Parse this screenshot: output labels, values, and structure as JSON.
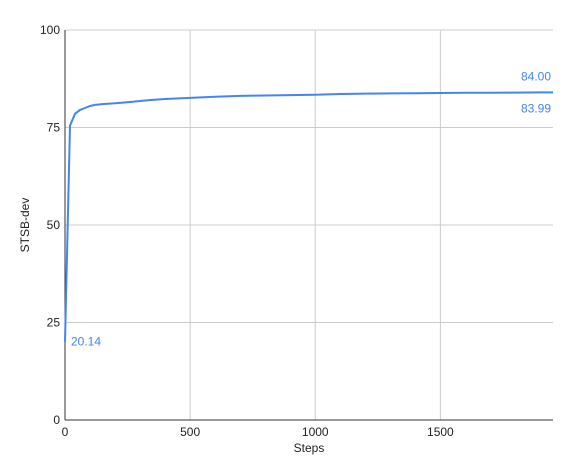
{
  "chart_data": {
    "type": "line",
    "xlabel": "Steps",
    "ylabel": "STSB-dev",
    "xlim": [
      0,
      1950
    ],
    "ylim": [
      0,
      100
    ],
    "x_ticks": [
      0,
      500,
      1000,
      1500
    ],
    "y_ticks": [
      0,
      25,
      50,
      75,
      100
    ],
    "grid": true,
    "line_color": "#4285f4",
    "label_color": "#4285f4",
    "series": [
      {
        "x": [
          0,
          20,
          40,
          60,
          80,
          100,
          120,
          150,
          200,
          250,
          300,
          330,
          400,
          500,
          600,
          700,
          800,
          900,
          1000,
          1050,
          1100,
          1200,
          1300,
          1400,
          1500,
          1600,
          1700,
          1800,
          1900,
          1950
        ],
        "y": [
          20.14,
          75.5,
          78.5,
          79.5,
          80.0,
          80.5,
          80.8,
          81.0,
          81.2,
          81.5,
          81.8,
          82.0,
          82.3,
          82.6,
          82.9,
          83.1,
          83.2,
          83.3,
          83.4,
          83.5,
          83.6,
          83.7,
          83.75,
          83.8,
          83.85,
          83.9,
          83.93,
          83.96,
          83.99,
          84.0
        ]
      }
    ],
    "annotations": [
      {
        "text": "20.14",
        "x": 0,
        "y": 20.14,
        "position": "right"
      },
      {
        "text": "84.00",
        "x": 1950,
        "y": 84.0,
        "position": "above-left"
      },
      {
        "text": "83.99",
        "x": 1950,
        "y": 83.99,
        "position": "below-left"
      }
    ]
  }
}
